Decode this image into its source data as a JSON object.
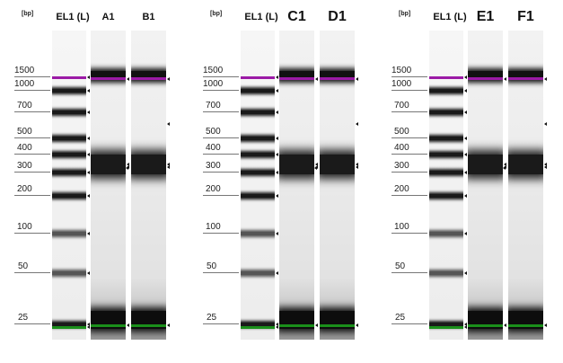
{
  "unit_label": "[bp]",
  "ladder_ticks": [
    "1500",
    "1000",
    "700",
    "500",
    "400",
    "300",
    "200",
    "100",
    "50",
    "25"
  ],
  "colors": {
    "upper_marker": "#9b1aa6",
    "lower_marker": "#1a8f1a",
    "band": "#111111"
  },
  "panels": [
    {
      "ladder_label": "EL1 (L)",
      "lanes": [
        "A1",
        "B1"
      ],
      "lane_label_size": "small"
    },
    {
      "ladder_label": "EL1 (L)",
      "lanes": [
        "C1",
        "D1"
      ],
      "lane_label_size": "big"
    },
    {
      "ladder_label": "EL1 (L)",
      "lanes": [
        "E1",
        "F1"
      ],
      "lane_label_size": "big"
    }
  ]
}
